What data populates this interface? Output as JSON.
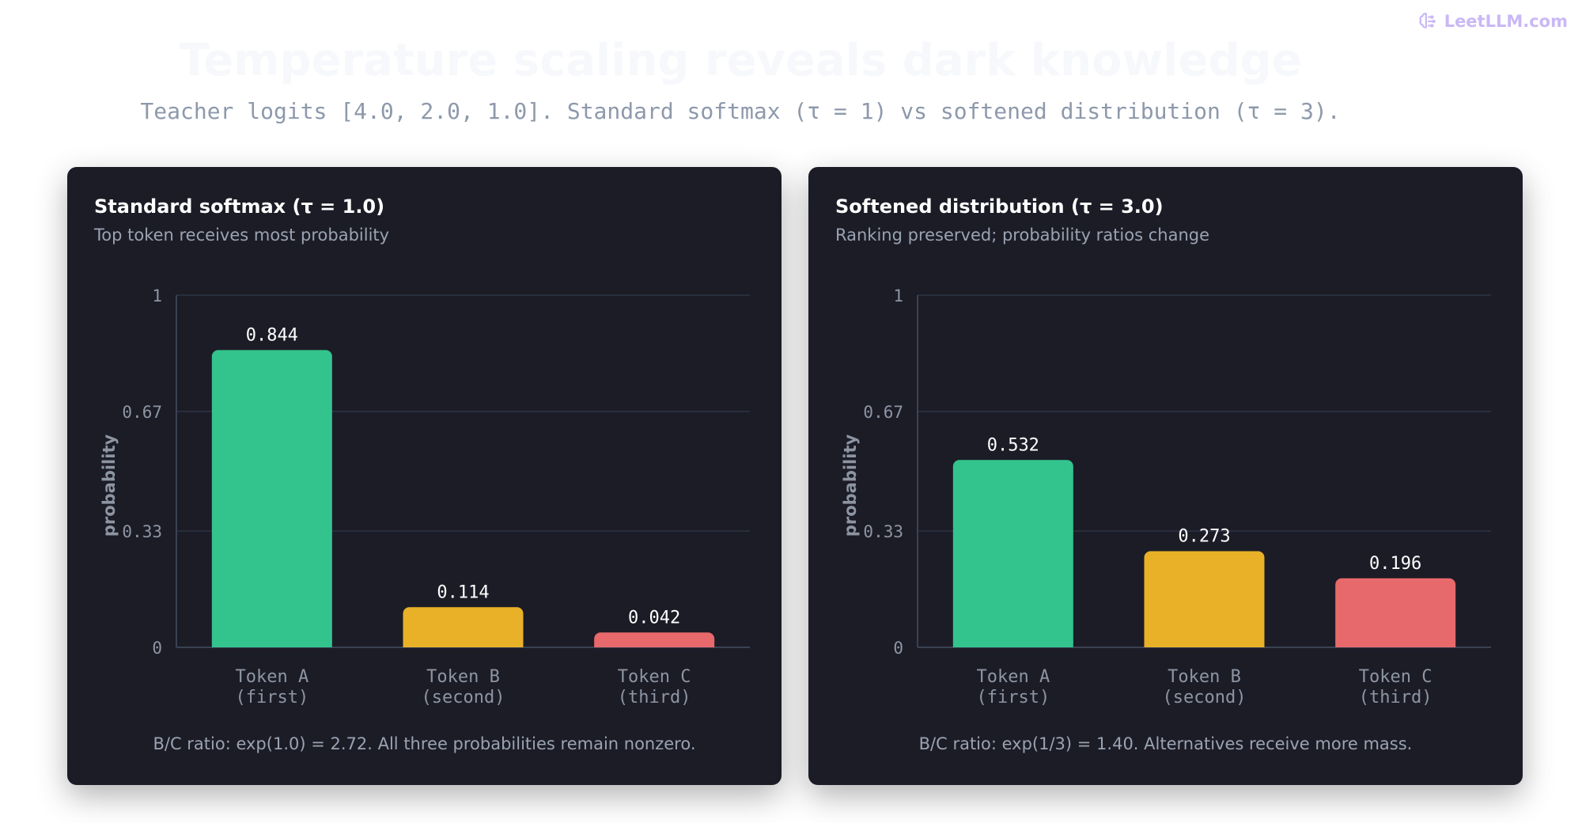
{
  "brand": {
    "name": "LeetLLM.com",
    "icon": "brain-icon",
    "color": "#c9b8f5"
  },
  "header": {
    "title": "Temperature scaling reveals dark knowledge",
    "subtitle": "Teacher logits [4.0, 2.0, 1.0]. Standard softmax (τ = 1) vs softened distribution (τ = 3)."
  },
  "panels": [
    {
      "title": "Standard softmax (τ = 1.0)",
      "subtitle": "Top token receives most probability",
      "note": "B/C ratio: exp(1.0) = 2.72. All three probabilities remain nonzero."
    },
    {
      "title": "Softened distribution (τ = 3.0)",
      "subtitle": "Ranking preserved; probability ratios change",
      "note": "B/C ratio: exp(1/3) = 1.40. Alternatives receive more mass."
    }
  ],
  "chart_data": [
    {
      "type": "bar",
      "title": "Standard softmax (τ = 1.0)",
      "categories": [
        [
          "Token A",
          "(first)"
        ],
        [
          "Token B",
          "(second)"
        ],
        [
          "Token C",
          "(third)"
        ]
      ],
      "values": [
        0.844,
        0.114,
        0.042
      ],
      "value_labels": [
        "0.844",
        "0.114",
        "0.042"
      ],
      "colors": [
        "#33c48d",
        "#e8b127",
        "#e8696b"
      ],
      "ylabel": "probability",
      "ylim": [
        0,
        1
      ],
      "yticks": [
        0,
        0.33,
        0.67,
        1
      ],
      "ytick_labels": [
        "0",
        "0.33",
        "0.67",
        "1"
      ],
      "grid": true
    },
    {
      "type": "bar",
      "title": "Softened distribution (τ = 3.0)",
      "categories": [
        [
          "Token A",
          "(first)"
        ],
        [
          "Token B",
          "(second)"
        ],
        [
          "Token C",
          "(third)"
        ]
      ],
      "values": [
        0.532,
        0.273,
        0.196
      ],
      "value_labels": [
        "0.532",
        "0.273",
        "0.196"
      ],
      "colors": [
        "#33c48d",
        "#e8b127",
        "#e8696b"
      ],
      "ylabel": "probability",
      "ylim": [
        0,
        1
      ],
      "yticks": [
        0,
        0.33,
        0.67,
        1
      ],
      "ytick_labels": [
        "0",
        "0.33",
        "0.67",
        "1"
      ],
      "grid": true
    }
  ]
}
